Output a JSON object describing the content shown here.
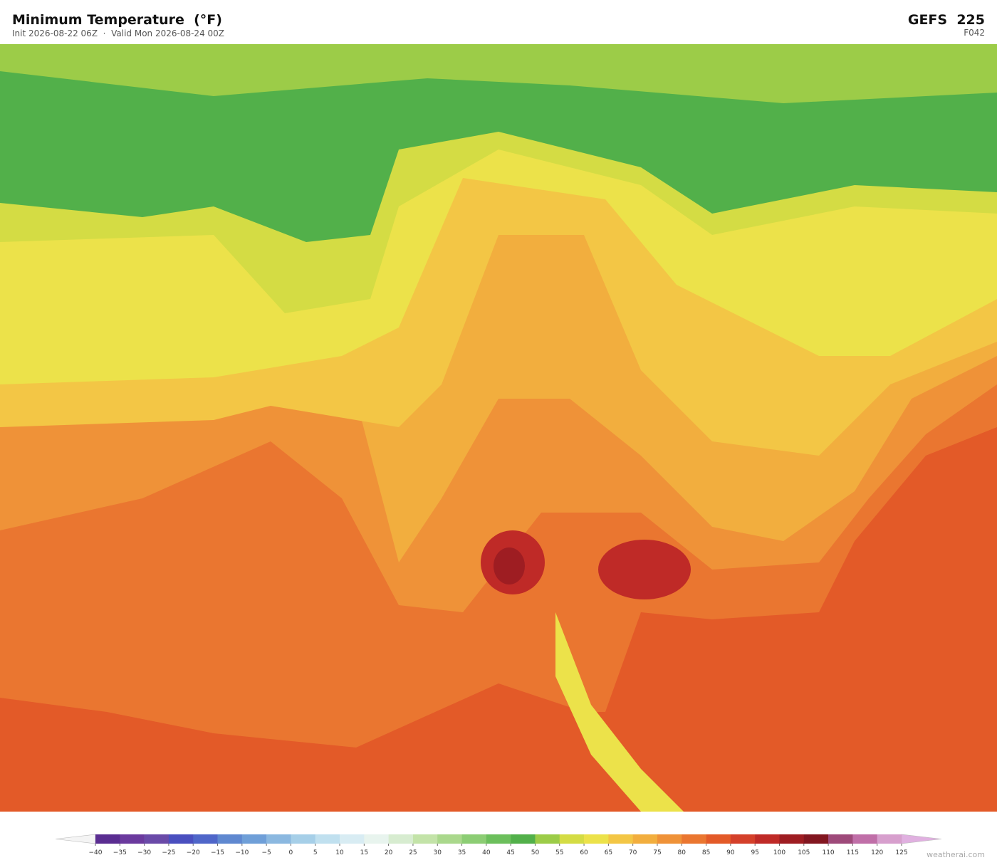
{
  "header": {
    "title": "Minimum Temperature  (°F)",
    "subtitle": "Init 2026-08-22 06Z  ·  Valid Mon 2026-08-24 00Z",
    "model": "GEFS  225",
    "forecast_hour": "F042"
  },
  "colorbar": {
    "ticks": [
      {
        "value": -40,
        "label": "−40"
      },
      {
        "value": -35,
        "label": "−35"
      },
      {
        "value": -30,
        "label": "−30"
      },
      {
        "value": -25,
        "label": "−25"
      },
      {
        "value": -20,
        "label": "−20"
      },
      {
        "value": -15,
        "label": "−15"
      },
      {
        "value": -10,
        "label": "−10"
      },
      {
        "value": -5,
        "label": "−5"
      },
      0,
      5,
      10,
      15,
      20,
      25,
      30,
      35,
      40,
      45,
      50,
      55,
      60,
      65,
      70,
      75,
      80,
      85,
      90,
      95,
      100,
      105,
      110,
      115,
      120,
      125
    ],
    "colors": [
      "#5a2d91",
      "#6b3a9e",
      "#6a4aa8",
      "#4a4fbf",
      "#4f66c9",
      "#5f88d0",
      "#6f9fd8",
      "#8bb8e0",
      "#a6cfe8",
      "#c0e0ef",
      "#d8ecf3",
      "#e8f4ee",
      "#d7ecd0",
      "#c3e3a8",
      "#aad88c",
      "#8ccd74",
      "#6cbf5c",
      "#52b04a",
      "#9ccc48",
      "#d4dc44",
      "#ece24a",
      "#f3c645",
      "#f2ae3e",
      "#ef9238",
      "#ea7630",
      "#e35a28",
      "#d4402a",
      "#bf2a27",
      "#9e1d22",
      "#821620",
      "#9e4a7a",
      "#c06fa8",
      "#d79fcd"
    ],
    "under_color": "#f4f4f4",
    "over_color": "#e0b0e0"
  },
  "footer": {
    "credit": "weatherai.com"
  }
}
